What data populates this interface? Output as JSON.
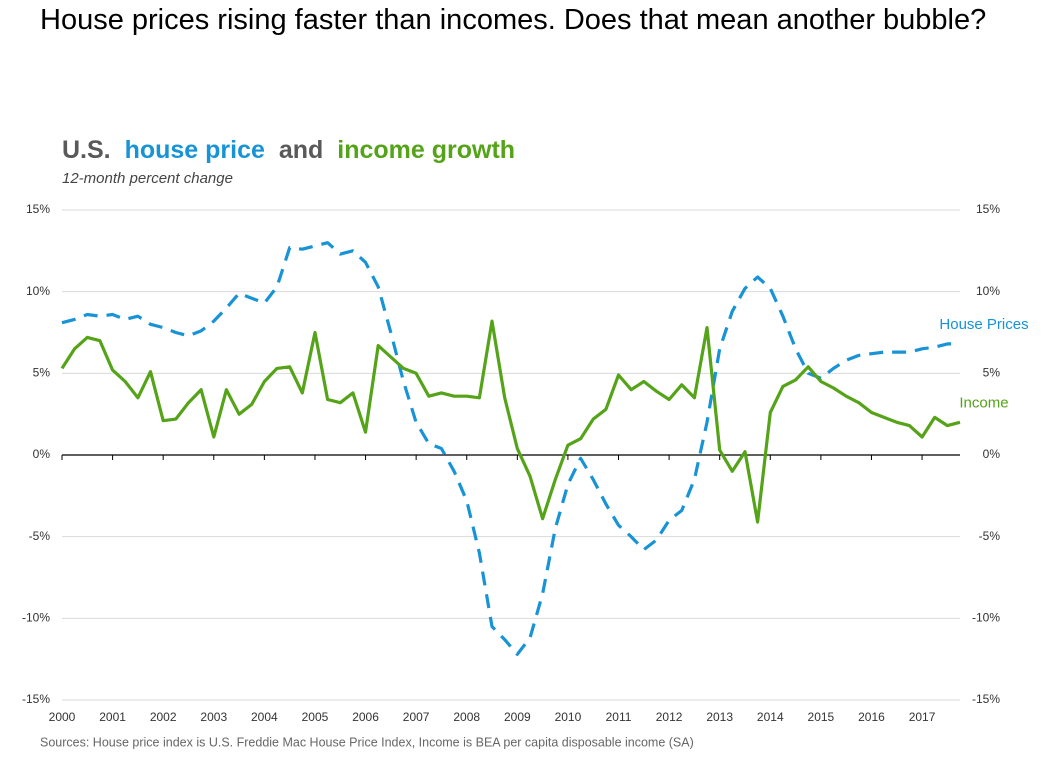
{
  "title": "House prices rising faster than incomes. Does that mean another bubble?",
  "chart_data": {
    "type": "line",
    "title_parts": [
      {
        "text": "U.S.",
        "color": "#595959"
      },
      {
        "text": "house price",
        "color": "#1793d6"
      },
      {
        "text": "and",
        "color": "#595959"
      },
      {
        "text": "income growth",
        "color": "#55a318"
      }
    ],
    "subtitle": "12-month percent change",
    "source": "Sources: House price index is U.S. Freddie Mac House Price Index, Income is BEA per capita disposable income (SA)",
    "x": [
      2000,
      2000.25,
      2000.5,
      2000.75,
      2001,
      2001.25,
      2001.5,
      2001.75,
      2002,
      2002.25,
      2002.5,
      2002.75,
      2003,
      2003.25,
      2003.5,
      2003.75,
      2004,
      2004.25,
      2004.5,
      2004.75,
      2005,
      2005.25,
      2005.5,
      2005.75,
      2006,
      2006.25,
      2006.5,
      2006.75,
      2007,
      2007.25,
      2007.5,
      2007.75,
      2008,
      2008.25,
      2008.5,
      2008.75,
      2009,
      2009.25,
      2009.5,
      2009.75,
      2010,
      2010.25,
      2010.5,
      2010.75,
      2011,
      2011.25,
      2011.5,
      2011.75,
      2012,
      2012.25,
      2012.5,
      2012.75,
      2013,
      2013.25,
      2013.5,
      2013.75,
      2014,
      2014.25,
      2014.5,
      2014.75,
      2015,
      2015.25,
      2015.5,
      2015.75,
      2016,
      2016.25,
      2016.5,
      2016.75,
      2017,
      2017.25,
      2017.5,
      2017.75
    ],
    "series": [
      {
        "name": "House Prices",
        "color": "#1793d6",
        "dashed": true,
        "values": [
          8.1,
          8.3,
          8.6,
          8.5,
          8.6,
          8.3,
          8.5,
          8.0,
          7.8,
          7.5,
          7.3,
          7.6,
          8.2,
          9.0,
          9.9,
          9.6,
          9.3,
          10.3,
          12.7,
          12.6,
          12.8,
          13.0,
          12.3,
          12.5,
          11.8,
          10.3,
          7.5,
          4.5,
          2.0,
          0.7,
          0.4,
          -1.0,
          -2.8,
          -6.0,
          -10.5,
          -11.3,
          -12.2,
          -11.2,
          -8.5,
          -4.5,
          -1.8,
          -0.2,
          -1.5,
          -3.0,
          -4.3,
          -5.0,
          -5.8,
          -5.2,
          -4.0,
          -3.4,
          -1.5,
          2.0,
          6.5,
          8.8,
          10.2,
          10.9,
          10.2,
          8.5,
          6.5,
          5.0,
          4.7,
          5.3,
          5.8,
          6.1,
          6.2,
          6.3,
          6.3,
          6.3,
          6.5,
          6.6,
          6.8,
          6.8
        ]
      },
      {
        "name": "Income",
        "color": "#55a318",
        "dashed": false,
        "values": [
          5.3,
          6.5,
          7.2,
          7.0,
          5.2,
          4.5,
          3.5,
          5.1,
          2.1,
          2.2,
          3.2,
          4.0,
          1.1,
          4.0,
          2.5,
          3.1,
          4.5,
          5.3,
          5.4,
          3.8,
          7.5,
          3.4,
          3.2,
          3.8,
          1.4,
          6.7,
          6.0,
          5.3,
          5.0,
          3.6,
          3.8,
          3.6,
          3.6,
          3.5,
          8.2,
          3.5,
          0.4,
          -1.3,
          -3.9,
          -1.5,
          0.6,
          1.0,
          2.2,
          2.8,
          4.9,
          4.0,
          4.5,
          3.9,
          3.4,
          4.3,
          3.5,
          7.8,
          0.3,
          -1.0,
          0.2,
          -4.1,
          2.6,
          4.2,
          4.6,
          5.4,
          4.5,
          4.1,
          3.6,
          3.2,
          2.6,
          2.3,
          2.0,
          1.8,
          1.1,
          2.3,
          1.8,
          2.0
        ]
      }
    ],
    "xlim": [
      2000,
      2017.75
    ],
    "xticks": [
      2000,
      2001,
      2002,
      2003,
      2004,
      2005,
      2006,
      2007,
      2008,
      2009,
      2010,
      2011,
      2012,
      2013,
      2014,
      2015,
      2016,
      2017
    ],
    "ylim": [
      -15,
      15
    ],
    "yticks": [
      {
        "value": -15,
        "label": "-15%"
      },
      {
        "value": -10,
        "label": "-10%"
      },
      {
        "value": -5,
        "label": "-5%"
      },
      {
        "value": 0,
        "label": "0%"
      },
      {
        "value": 5,
        "label": "5%"
      },
      {
        "value": 10,
        "label": "10%"
      },
      {
        "value": 15,
        "label": "15%"
      }
    ],
    "y2lim": [
      -15,
      15
    ],
    "y2ticks": [
      {
        "value": -15,
        "label": "-15%"
      },
      {
        "value": -10,
        "label": "-10%"
      },
      {
        "value": -5,
        "label": "-5%"
      },
      {
        "value": 0,
        "label": "0%"
      },
      {
        "value": 5,
        "label": "5%"
      },
      {
        "value": 10,
        "label": "10%"
      },
      {
        "value": 15,
        "label": "15%"
      }
    ],
    "grid": true
  }
}
